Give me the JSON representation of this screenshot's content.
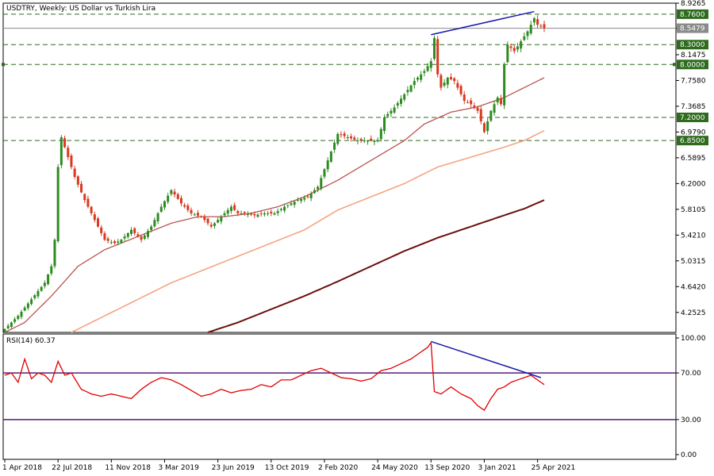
{
  "title": "USDTRY, Weekly:  US Dollar vs Turkish Lira",
  "rsi_label": "RSI(14) 60.37",
  "colors": {
    "bull": "#2e8b22",
    "bear": "#d8391f",
    "ma50": "#b85450",
    "ma100": "#f4a582",
    "ma200": "#6b0f0f",
    "rsi": "#e00000",
    "rsi_level": "#5a1a7a",
    "trend": "#1a1aa8",
    "level": "#2e6b1e",
    "current": "#8a8a8a"
  },
  "chart_data": {
    "type": "line",
    "price_axis": {
      "min": 3.95,
      "max": 8.9265,
      "ticks": [
        "8.9265",
        "8.5479",
        "8.1475",
        "7.7580",
        "7.3685",
        "6.9790",
        "6.5895",
        "6.2000",
        "5.8105",
        "5.4210",
        "5.0315",
        "4.6420",
        "4.2525"
      ],
      "tick_values": [
        8.9265,
        8.5479,
        8.1475,
        7.758,
        7.3685,
        6.979,
        6.5895,
        6.2,
        5.8105,
        5.421,
        5.0315,
        4.642,
        4.2525
      ]
    },
    "levels": [
      {
        "value": 8.76,
        "label": "8.7600"
      },
      {
        "value": 8.3,
        "label": "8.3000"
      },
      {
        "value": 8.0,
        "label": "8.0000"
      },
      {
        "value": 7.2,
        "label": "7.2000"
      },
      {
        "value": 6.85,
        "label": "6.8500"
      }
    ],
    "current_price": {
      "value": 8.5479,
      "label": "8.5479"
    },
    "x_labels": [
      "1 Apr 2018",
      "22 Jul 2018",
      "11 Nov 2018",
      "3 Mar 2019",
      "23 Jun 2019",
      "13 Oct 2019",
      "2 Feb 2020",
      "24 May 2020",
      "13 Sep 2020",
      "3 Jan 2021",
      "25 Apr 2021"
    ],
    "x_label_weeks": [
      0,
      16,
      32,
      48,
      64,
      80,
      96,
      112,
      128,
      144,
      160
    ],
    "price_anchors": [
      [
        0,
        4.0
      ],
      [
        4,
        4.2
      ],
      [
        8,
        4.45
      ],
      [
        12,
        4.7
      ],
      [
        14,
        4.95
      ],
      [
        15,
        5.35
      ],
      [
        16,
        6.45
      ],
      [
        17,
        6.9
      ],
      [
        19,
        6.6
      ],
      [
        21,
        6.3
      ],
      [
        24,
        5.95
      ],
      [
        27,
        5.65
      ],
      [
        30,
        5.35
      ],
      [
        33,
        5.3
      ],
      [
        35,
        5.35
      ],
      [
        38,
        5.5
      ],
      [
        41,
        5.35
      ],
      [
        44,
        5.55
      ],
      [
        47,
        5.85
      ],
      [
        50,
        6.1
      ],
      [
        53,
        5.9
      ],
      [
        56,
        5.75
      ],
      [
        59,
        5.7
      ],
      [
        62,
        5.55
      ],
      [
        64,
        5.65
      ],
      [
        66,
        5.75
      ],
      [
        68,
        5.85
      ],
      [
        70,
        5.75
      ],
      [
        72,
        5.75
      ],
      [
        75,
        5.72
      ],
      [
        78,
        5.75
      ],
      [
        81,
        5.75
      ],
      [
        84,
        5.85
      ],
      [
        88,
        5.95
      ],
      [
        91,
        6.0
      ],
      [
        94,
        6.15
      ],
      [
        97,
        6.55
      ],
      [
        100,
        6.95
      ],
      [
        103,
        6.9
      ],
      [
        106,
        6.85
      ],
      [
        110,
        6.85
      ],
      [
        112,
        6.85
      ],
      [
        114,
        7.2
      ],
      [
        117,
        7.35
      ],
      [
        120,
        7.55
      ],
      [
        123,
        7.75
      ],
      [
        126,
        7.9
      ],
      [
        128,
        8.05
      ],
      [
        129,
        8.4
      ],
      [
        130,
        7.85
      ],
      [
        131,
        7.65
      ],
      [
        133,
        7.8
      ],
      [
        135,
        7.75
      ],
      [
        138,
        7.45
      ],
      [
        140,
        7.4
      ],
      [
        142,
        7.3
      ],
      [
        144,
        6.98
      ],
      [
        146,
        7.3
      ],
      [
        148,
        7.5
      ],
      [
        149,
        7.4
      ],
      [
        150,
        8.0
      ],
      [
        151,
        8.3
      ],
      [
        153,
        8.2
      ],
      [
        155,
        8.35
      ],
      [
        157,
        8.5
      ],
      [
        159,
        8.7
      ],
      [
        160,
        8.6
      ],
      [
        162,
        8.55
      ]
    ],
    "ma50_anchors": [
      [
        0,
        3.95
      ],
      [
        6,
        4.1
      ],
      [
        14,
        4.5
      ],
      [
        22,
        4.95
      ],
      [
        30,
        5.2
      ],
      [
        40,
        5.4
      ],
      [
        50,
        5.6
      ],
      [
        58,
        5.7
      ],
      [
        66,
        5.7
      ],
      [
        74,
        5.75
      ],
      [
        82,
        5.85
      ],
      [
        90,
        6.0
      ],
      [
        100,
        6.25
      ],
      [
        110,
        6.55
      ],
      [
        120,
        6.85
      ],
      [
        126,
        7.1
      ],
      [
        134,
        7.28
      ],
      [
        142,
        7.36
      ],
      [
        150,
        7.5
      ],
      [
        156,
        7.65
      ],
      [
        162,
        7.8
      ]
    ],
    "ma100_anchors": [
      [
        20,
        3.95
      ],
      [
        30,
        4.2
      ],
      [
        40,
        4.45
      ],
      [
        50,
        4.7
      ],
      [
        60,
        4.9
      ],
      [
        70,
        5.1
      ],
      [
        80,
        5.3
      ],
      [
        90,
        5.5
      ],
      [
        100,
        5.8
      ],
      [
        110,
        6.0
      ],
      [
        120,
        6.2
      ],
      [
        130,
        6.45
      ],
      [
        140,
        6.6
      ],
      [
        150,
        6.75
      ],
      [
        156,
        6.85
      ],
      [
        162,
        7.0
      ]
    ],
    "ma200_anchors": [
      [
        61,
        3.95
      ],
      [
        70,
        4.1
      ],
      [
        80,
        4.3
      ],
      [
        90,
        4.5
      ],
      [
        100,
        4.72
      ],
      [
        110,
        4.95
      ],
      [
        120,
        5.18
      ],
      [
        130,
        5.38
      ],
      [
        140,
        5.55
      ],
      [
        150,
        5.72
      ],
      [
        156,
        5.82
      ],
      [
        162,
        5.95
      ]
    ],
    "price_trendline": {
      "from": [
        128,
        8.45
      ],
      "to": [
        159,
        8.8
      ]
    },
    "rsi": {
      "label": "RSI(14)",
      "value": 60.37,
      "axis_ticks": [
        "100.00",
        "70.00",
        "30.00",
        "0.00"
      ],
      "axis_tick_values": [
        100,
        70,
        30,
        0
      ],
      "levels": [
        70,
        30
      ],
      "anchors": [
        [
          0,
          68
        ],
        [
          2,
          70
        ],
        [
          4,
          62
        ],
        [
          6,
          82
        ],
        [
          8,
          65
        ],
        [
          10,
          70
        ],
        [
          12,
          68
        ],
        [
          14,
          62
        ],
        [
          16,
          80
        ],
        [
          18,
          68
        ],
        [
          20,
          70
        ],
        [
          23,
          56
        ],
        [
          26,
          52
        ],
        [
          29,
          50
        ],
        [
          32,
          52
        ],
        [
          35,
          50
        ],
        [
          38,
          48
        ],
        [
          41,
          56
        ],
        [
          44,
          62
        ],
        [
          47,
          66
        ],
        [
          50,
          64
        ],
        [
          53,
          60
        ],
        [
          56,
          55
        ],
        [
          59,
          50
        ],
        [
          62,
          52
        ],
        [
          65,
          56
        ],
        [
          68,
          53
        ],
        [
          71,
          55
        ],
        [
          74,
          56
        ],
        [
          77,
          60
        ],
        [
          80,
          58
        ],
        [
          83,
          64
        ],
        [
          86,
          64
        ],
        [
          89,
          68
        ],
        [
          92,
          72
        ],
        [
          95,
          74
        ],
        [
          98,
          70
        ],
        [
          101,
          66
        ],
        [
          104,
          65
        ],
        [
          107,
          63
        ],
        [
          110,
          65
        ],
        [
          113,
          72
        ],
        [
          116,
          74
        ],
        [
          119,
          78
        ],
        [
          122,
          82
        ],
        [
          125,
          88
        ],
        [
          127,
          92
        ],
        [
          128,
          96
        ],
        [
          129,
          54
        ],
        [
          131,
          52
        ],
        [
          134,
          58
        ],
        [
          137,
          52
        ],
        [
          140,
          48
        ],
        [
          142,
          42
        ],
        [
          144,
          38
        ],
        [
          146,
          48
        ],
        [
          148,
          56
        ],
        [
          150,
          58
        ],
        [
          152,
          62
        ],
        [
          154,
          64
        ],
        [
          156,
          66
        ],
        [
          158,
          68
        ],
        [
          160,
          64
        ],
        [
          162,
          60
        ]
      ],
      "trendline": {
        "from": [
          128,
          97
        ],
        "to": [
          161,
          66
        ]
      }
    }
  }
}
